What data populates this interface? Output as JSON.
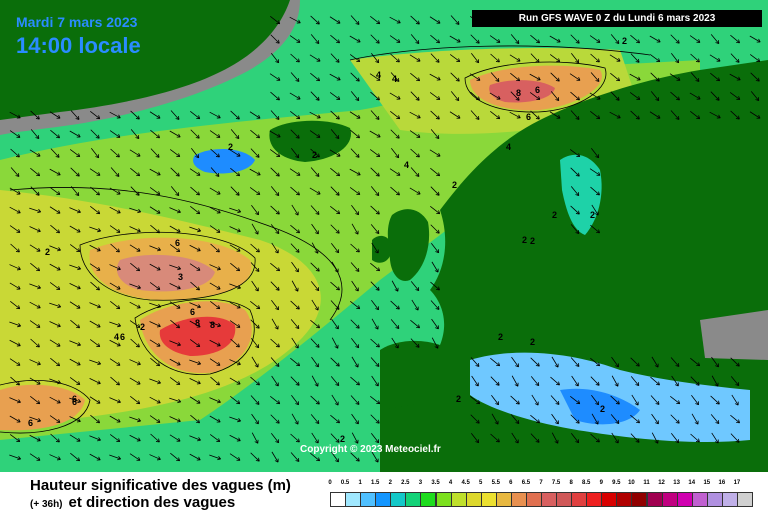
{
  "header": {
    "date": "Mardi 7 mars 2023",
    "time": "14:00 locale",
    "run": "Run GFS WAVE 0 Z du Lundi 6 mars 2023"
  },
  "copyright": "Copyright © 2023 Meteociel.fr",
  "legend": {
    "title": "Hauteur significative des vagues (m)",
    "lead": "(+ 36h)",
    "subtitle": "et direction des vagues",
    "ticks": [
      "0",
      "0.5",
      "1",
      "1.5",
      "2",
      "2.5",
      "3",
      "3.5",
      "4",
      "4.5",
      "5",
      "5.5",
      "6",
      "6.5",
      "7",
      "7.5",
      "8",
      "8.5",
      "9",
      "9.5",
      "10",
      "11",
      "12",
      "13",
      "14",
      "15",
      "16",
      "17"
    ],
    "colors": [
      "#ffffff",
      "#a0e8ff",
      "#50c0ff",
      "#1496ff",
      "#14c8c8",
      "#14d278",
      "#1edc1e",
      "#7ce01e",
      "#bfe02c",
      "#ddd82c",
      "#ece030",
      "#e8b840",
      "#e89050",
      "#e07050",
      "#d86060",
      "#d05858",
      "#e04040",
      "#ee2020",
      "#d80000",
      "#b00000",
      "#900000",
      "#a00050",
      "#c00080",
      "#d000b0",
      "#c060d0",
      "#b090e0",
      "#c0b0e8",
      "#d0d0d0"
    ]
  },
  "map_labels": [
    "2",
    "2",
    "2",
    "4",
    "4",
    "2",
    "2",
    "2",
    "2",
    "2",
    "4",
    "6",
    "8",
    "6",
    "4",
    "2",
    "2",
    "6",
    "3",
    "6",
    "6",
    "8",
    "6",
    "4",
    "2",
    "6",
    "6",
    "2",
    "2",
    "2",
    "8",
    "2"
  ],
  "icons": [
    "wave-direction-arrow"
  ]
}
